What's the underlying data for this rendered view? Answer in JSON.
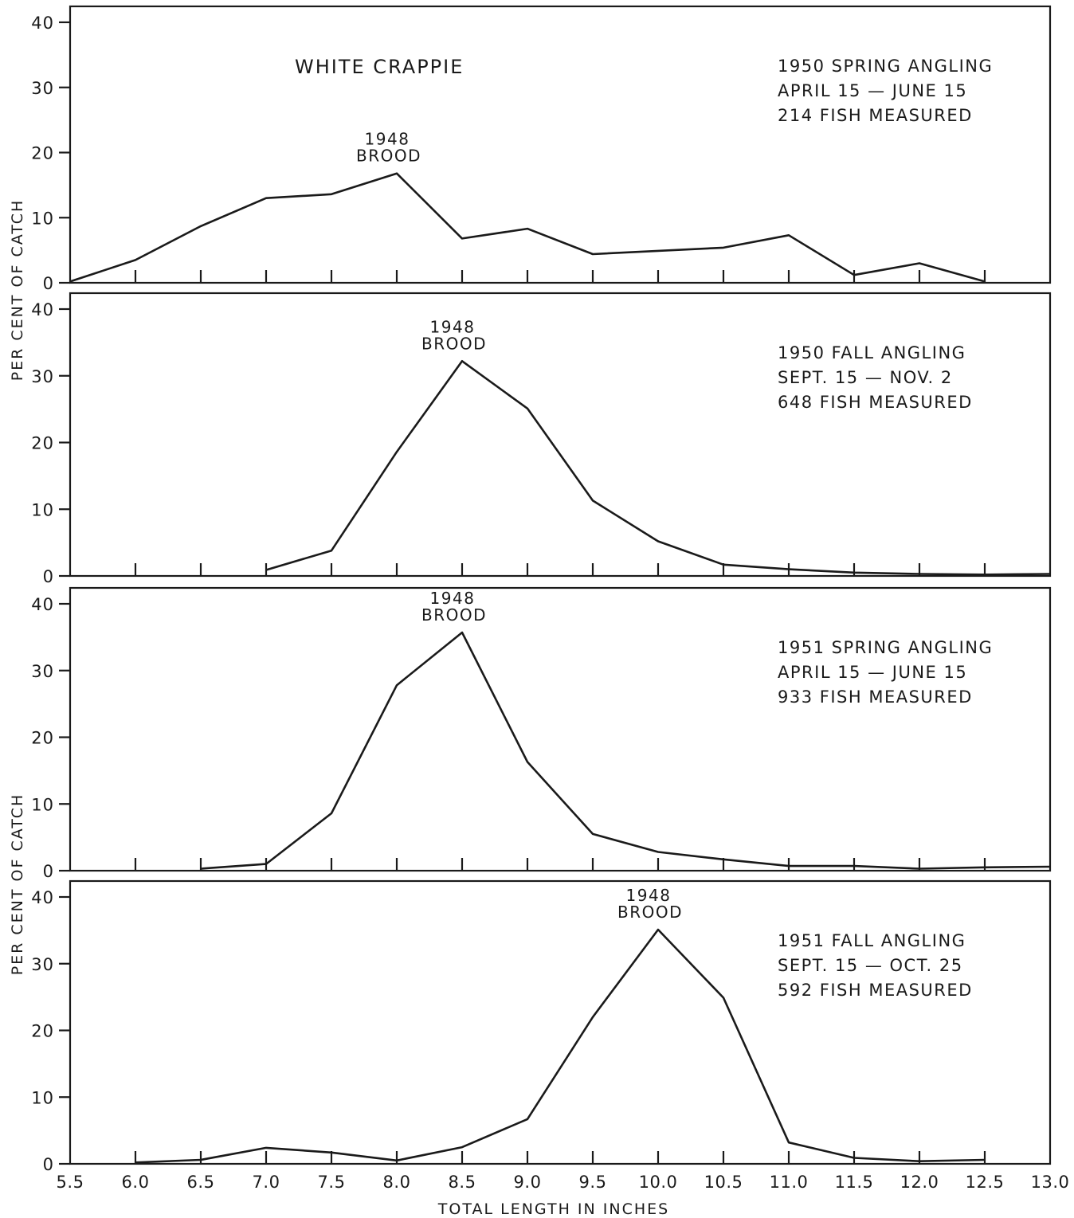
{
  "ylabel": "PER CENT OF CATCH",
  "xlabel": "TOTAL LENGTH IN INCHES",
  "chart_data": [
    {
      "type": "line",
      "title": "WHITE CRAPPIE",
      "info_lines": [
        "1950 SPRING ANGLING",
        "APRIL 15 — JUNE 15",
        "214 FISH MEASURED"
      ],
      "annotation": {
        "lines": [
          "1948",
          "BROOD"
        ],
        "x": 8.0,
        "y": 16.8
      },
      "x": [
        5.5,
        6.0,
        6.5,
        7.0,
        7.5,
        8.0,
        8.5,
        9.0,
        9.5,
        10.0,
        10.5,
        11.0,
        11.5,
        12.0,
        12.5
      ],
      "values": [
        0.2,
        3.5,
        8.7,
        13.0,
        13.6,
        16.8,
        6.8,
        8.3,
        4.4,
        4.9,
        5.4,
        7.3,
        1.2,
        3.0,
        0.2
      ],
      "xlim": [
        5.5,
        13.0
      ],
      "ylim": [
        0,
        42
      ],
      "yticks": [
        "0",
        "10",
        "20",
        "30",
        "40"
      ]
    },
    {
      "type": "line",
      "title": "",
      "info_lines": [
        "1950 FALL ANGLING",
        "SEPT. 15 — NOV. 2",
        "648 FISH MEASURED"
      ],
      "annotation": {
        "lines": [
          "1948",
          "BROOD"
        ],
        "x": 8.5,
        "y": 32.2
      },
      "x": [
        7.0,
        7.5,
        8.0,
        8.5,
        9.0,
        9.5,
        10.0,
        10.5,
        11.0,
        11.5,
        12.0,
        12.5,
        13.0
      ],
      "values": [
        0.9,
        3.8,
        18.6,
        32.2,
        25.1,
        11.3,
        5.2,
        1.7,
        1.0,
        0.5,
        0.3,
        0.2,
        0.3
      ],
      "xlim": [
        5.5,
        13.0
      ],
      "ylim": [
        0,
        40
      ],
      "yticks": [
        "0",
        "10",
        "20",
        "30",
        "40"
      ]
    },
    {
      "type": "line",
      "title": "",
      "info_lines": [
        "1951 SPRING ANGLING",
        "APRIL 15 — JUNE 15",
        "933 FISH MEASURED"
      ],
      "annotation": {
        "lines": [
          "1948",
          "BROOD"
        ],
        "x": 8.5,
        "y": 35.7
      },
      "x": [
        6.5,
        7.0,
        7.5,
        8.0,
        8.5,
        9.0,
        9.5,
        10.0,
        10.5,
        11.0,
        11.5,
        12.0,
        12.5,
        13.0
      ],
      "values": [
        0.3,
        1.0,
        8.6,
        27.8,
        35.7,
        16.3,
        5.5,
        2.8,
        1.7,
        0.7,
        0.7,
        0.3,
        0.5,
        0.6
      ],
      "xlim": [
        5.5,
        13.0
      ],
      "ylim": [
        0,
        40
      ],
      "yticks": [
        "0",
        "10",
        "20",
        "30",
        "40"
      ]
    },
    {
      "type": "line",
      "title": "",
      "info_lines": [
        "1951 FALL ANGLING",
        "SEPT. 15 — OCT. 25",
        "592 FISH MEASURED"
      ],
      "annotation": {
        "lines": [
          "1948",
          "BROOD"
        ],
        "x": 10.0,
        "y": 35.1
      },
      "x": [
        6.0,
        6.5,
        7.0,
        7.5,
        8.0,
        8.5,
        9.0,
        9.5,
        10.0,
        10.5,
        11.0,
        11.5,
        12.0,
        12.5
      ],
      "values": [
        0.2,
        0.6,
        2.4,
        1.7,
        0.5,
        2.5,
        6.7,
        22.0,
        35.1,
        24.9,
        3.2,
        0.9,
        0.4,
        0.6
      ],
      "xlim": [
        5.5,
        13.0
      ],
      "ylim": [
        0,
        40
      ],
      "yticks": [
        "0",
        "10",
        "20",
        "30",
        "40"
      ]
    }
  ],
  "xticks": [
    "5.5",
    "6.0",
    "6.5",
    "7.0",
    "7.5",
    "8.0",
    "8.5",
    "9.0",
    "9.5",
    "10.0",
    "10.5",
    "11.0",
    "11.5",
    "12.0",
    "12.5",
    "13.0"
  ]
}
